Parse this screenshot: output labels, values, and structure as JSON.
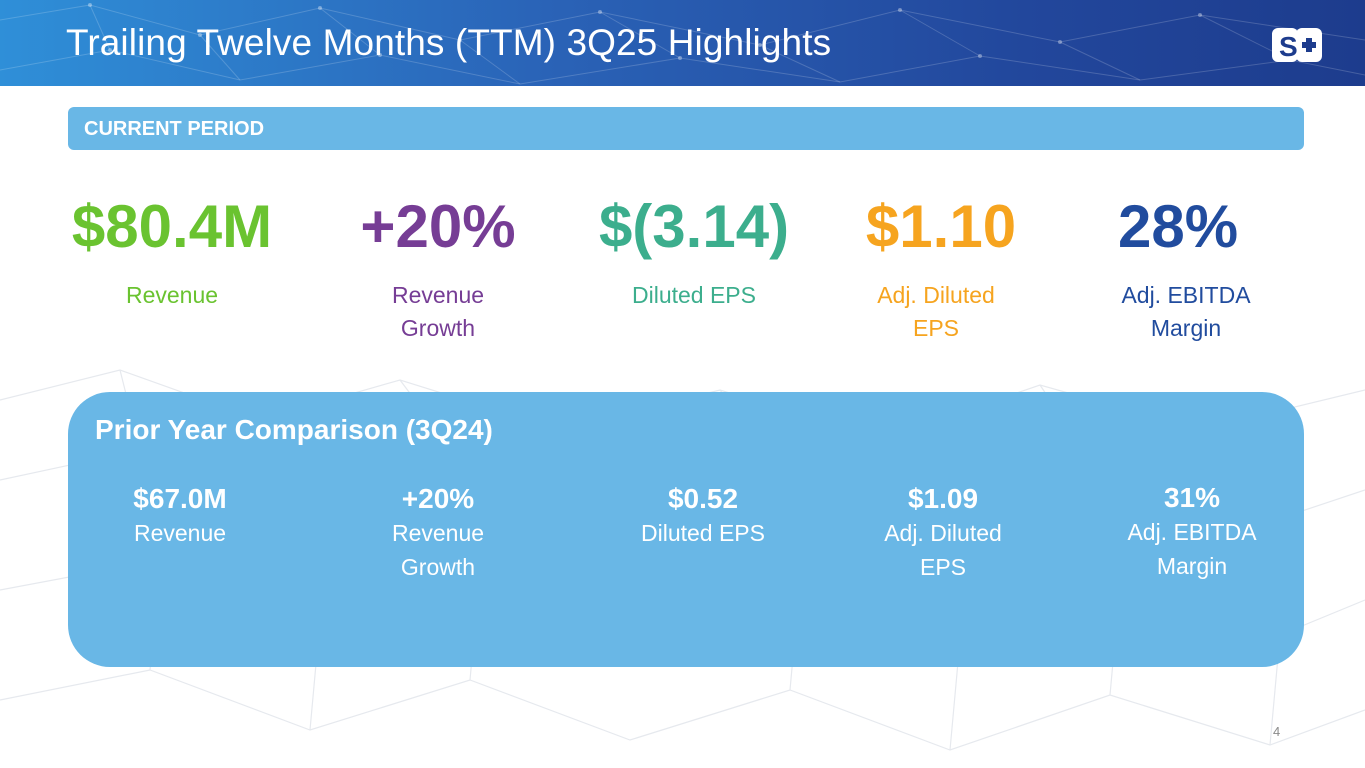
{
  "header": {
    "title": "Trailing Twelve Months (TTM) 3Q25 Highlights",
    "logo_text": "S+",
    "logo_icon": "s-plus-logo-icon"
  },
  "current_period": {
    "label": "CURRENT PERIOD",
    "metrics": [
      {
        "value": "$80.4M",
        "label": "Revenue",
        "color": "#6ac330"
      },
      {
        "value": "+20%",
        "label": "Revenue Growth",
        "color": "#763d95"
      },
      {
        "value": "$(3.14)",
        "label": "Diluted EPS",
        "color": "#3cae8d"
      },
      {
        "value": "$1.10",
        "label": "Adj. Diluted EPS",
        "color": "#f6a41f"
      },
      {
        "value": "28%",
        "label": "Adj. EBITDA Margin",
        "color": "#214c9e"
      }
    ]
  },
  "prior_year": {
    "title": "Prior Year Comparison (3Q24)",
    "metrics": [
      {
        "value": "$67.0M",
        "label": "Revenue"
      },
      {
        "value": "+20%",
        "label": "Revenue Growth"
      },
      {
        "value": "$0.52",
        "label": "Diluted EPS"
      },
      {
        "value": "$1.09",
        "label": "Adj. Diluted EPS"
      },
      {
        "value": "31%",
        "label": "Adj. EBITDA Margin"
      }
    ]
  },
  "page_number": "4",
  "colors": {
    "accent_blue": "#69b7e6",
    "header_dark": "#1d3c8d"
  }
}
